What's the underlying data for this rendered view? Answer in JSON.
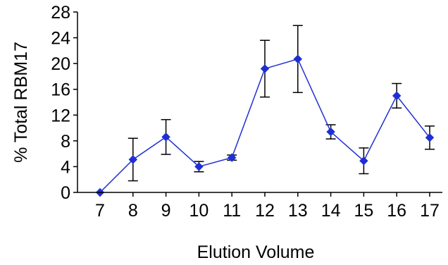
{
  "chart_data": {
    "type": "line",
    "title": "",
    "xlabel": "Elution Volume",
    "ylabel": "% Total RBM17",
    "x": [
      "7",
      "8",
      "9",
      "10",
      "11",
      "12",
      "13",
      "14",
      "15",
      "16",
      "17"
    ],
    "series": [
      {
        "values": [
          0,
          5.1,
          8.6,
          4.0,
          5.4,
          19.2,
          20.7,
          9.4,
          4.9,
          15.0,
          8.5
        ],
        "error": [
          0,
          3.3,
          2.7,
          0.8,
          0.4,
          4.4,
          5.2,
          1.1,
          2.0,
          1.9,
          1.8
        ],
        "color": "#1f2fd4"
      }
    ],
    "ylim": [
      0,
      28
    ],
    "yticks": [
      0,
      4,
      8,
      12,
      16,
      20,
      24,
      28
    ],
    "grid": false,
    "legend": "none"
  },
  "colors": {
    "line": "#1f2fd4",
    "marker": "#1f2fd4",
    "error_bar": "#000000",
    "axis": "#000000"
  }
}
